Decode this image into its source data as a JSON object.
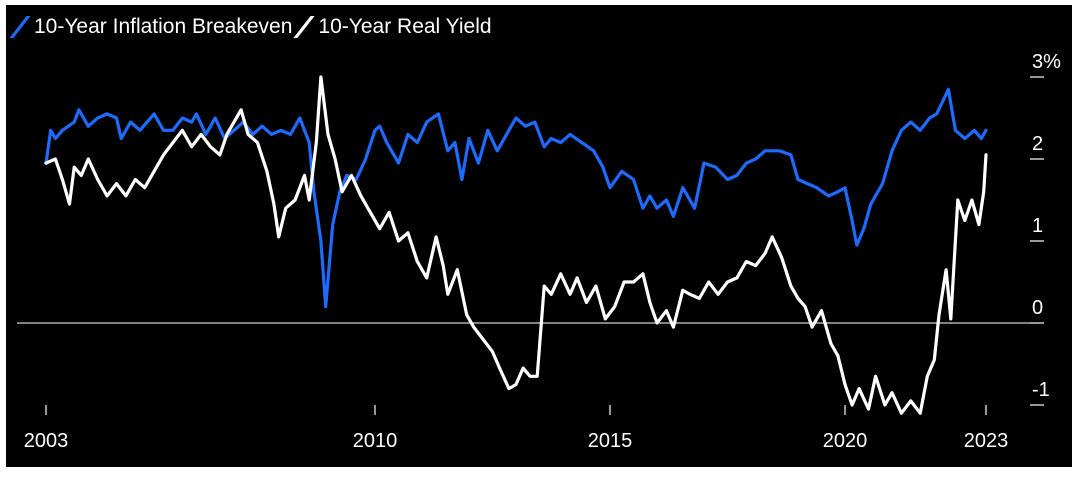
{
  "chart_data": {
    "type": "line",
    "title": "",
    "xlabel": "",
    "ylabel": "",
    "x_ticks": [
      "2003",
      "2010",
      "2015",
      "2020",
      "2023"
    ],
    "y_ticks": [
      "3%",
      "2",
      "1",
      "0",
      "-1"
    ],
    "y_tick_values": [
      3,
      2,
      1,
      0,
      -1
    ],
    "ylim": [
      -1.2,
      3.2
    ],
    "xlim": [
      2003.0,
      2023.0
    ],
    "legend": "top-left",
    "series": [
      {
        "name": "10-Year Inflation Breakeven",
        "color": "#1f6bff",
        "points": [
          [
            2003.0,
            1.95
          ],
          [
            2003.1,
            2.35
          ],
          [
            2003.2,
            2.25
          ],
          [
            2003.35,
            2.35
          ],
          [
            2003.6,
            2.45
          ],
          [
            2003.7,
            2.6
          ],
          [
            2003.9,
            2.4
          ],
          [
            2004.1,
            2.5
          ],
          [
            2004.3,
            2.55
          ],
          [
            2004.5,
            2.5
          ],
          [
            2004.6,
            2.25
          ],
          [
            2004.8,
            2.45
          ],
          [
            2005.0,
            2.35
          ],
          [
            2005.3,
            2.55
          ],
          [
            2005.5,
            2.35
          ],
          [
            2005.7,
            2.35
          ],
          [
            2005.9,
            2.5
          ],
          [
            2006.1,
            2.45
          ],
          [
            2006.2,
            2.55
          ],
          [
            2006.4,
            2.3
          ],
          [
            2006.6,
            2.5
          ],
          [
            2006.8,
            2.25
          ],
          [
            2007.0,
            2.35
          ],
          [
            2007.2,
            2.45
          ],
          [
            2007.4,
            2.3
          ],
          [
            2007.6,
            2.4
          ],
          [
            2007.8,
            2.3
          ],
          [
            2008.0,
            2.35
          ],
          [
            2008.2,
            2.3
          ],
          [
            2008.4,
            2.5
          ],
          [
            2008.6,
            2.2
          ],
          [
            2008.7,
            1.6
          ],
          [
            2008.85,
            1.0
          ],
          [
            2008.95,
            0.2
          ],
          [
            2009.1,
            1.2
          ],
          [
            2009.25,
            1.6
          ],
          [
            2009.4,
            1.8
          ],
          [
            2009.6,
            1.75
          ],
          [
            2009.8,
            2.0
          ],
          [
            2010.0,
            2.35
          ],
          [
            2010.1,
            2.4
          ],
          [
            2010.25,
            2.2
          ],
          [
            2010.5,
            1.95
          ],
          [
            2010.7,
            2.3
          ],
          [
            2010.9,
            2.2
          ],
          [
            2011.1,
            2.45
          ],
          [
            2011.35,
            2.55
          ],
          [
            2011.55,
            2.1
          ],
          [
            2011.7,
            2.2
          ],
          [
            2011.85,
            1.75
          ],
          [
            2012.0,
            2.25
          ],
          [
            2012.2,
            1.95
          ],
          [
            2012.4,
            2.35
          ],
          [
            2012.6,
            2.1
          ],
          [
            2012.8,
            2.3
          ],
          [
            2013.0,
            2.5
          ],
          [
            2013.2,
            2.4
          ],
          [
            2013.4,
            2.45
          ],
          [
            2013.6,
            2.15
          ],
          [
            2013.75,
            2.25
          ],
          [
            2013.95,
            2.2
          ],
          [
            2014.15,
            2.3
          ],
          [
            2014.4,
            2.2
          ],
          [
            2014.65,
            2.1
          ],
          [
            2014.85,
            1.9
          ],
          [
            2015.0,
            1.65
          ],
          [
            2015.25,
            1.85
          ],
          [
            2015.5,
            1.75
          ],
          [
            2015.7,
            1.4
          ],
          [
            2015.85,
            1.55
          ],
          [
            2016.0,
            1.4
          ],
          [
            2016.2,
            1.5
          ],
          [
            2016.35,
            1.3
          ],
          [
            2016.55,
            1.65
          ],
          [
            2016.8,
            1.4
          ],
          [
            2017.0,
            1.95
          ],
          [
            2017.25,
            1.9
          ],
          [
            2017.5,
            1.75
          ],
          [
            2017.7,
            1.8
          ],
          [
            2017.9,
            1.95
          ],
          [
            2018.1,
            2.0
          ],
          [
            2018.3,
            2.1
          ],
          [
            2018.6,
            2.1
          ],
          [
            2018.85,
            2.05
          ],
          [
            2019.0,
            1.75
          ],
          [
            2019.2,
            1.7
          ],
          [
            2019.4,
            1.65
          ],
          [
            2019.65,
            1.55
          ],
          [
            2019.85,
            1.6
          ],
          [
            2020.0,
            1.65
          ],
          [
            2020.15,
            1.25
          ],
          [
            2020.25,
            0.95
          ],
          [
            2020.4,
            1.15
          ],
          [
            2020.55,
            1.45
          ],
          [
            2020.8,
            1.7
          ],
          [
            2021.0,
            2.1
          ],
          [
            2021.2,
            2.35
          ],
          [
            2021.4,
            2.45
          ],
          [
            2021.6,
            2.35
          ],
          [
            2021.8,
            2.5
          ],
          [
            2021.95,
            2.55
          ],
          [
            2022.2,
            2.85
          ],
          [
            2022.35,
            2.35
          ],
          [
            2022.55,
            2.25
          ],
          [
            2022.75,
            2.35
          ],
          [
            2022.9,
            2.25
          ],
          [
            2023.0,
            2.35
          ]
        ]
      },
      {
        "name": "10-Year Real Yield",
        "color": "#ffffff",
        "points": [
          [
            2003.0,
            1.95
          ],
          [
            2003.2,
            2.0
          ],
          [
            2003.35,
            1.75
          ],
          [
            2003.5,
            1.45
          ],
          [
            2003.6,
            1.9
          ],
          [
            2003.75,
            1.8
          ],
          [
            2003.9,
            2.0
          ],
          [
            2004.1,
            1.75
          ],
          [
            2004.3,
            1.55
          ],
          [
            2004.5,
            1.7
          ],
          [
            2004.7,
            1.55
          ],
          [
            2004.9,
            1.75
          ],
          [
            2005.1,
            1.65
          ],
          [
            2005.3,
            1.85
          ],
          [
            2005.5,
            2.05
          ],
          [
            2005.7,
            2.2
          ],
          [
            2005.9,
            2.35
          ],
          [
            2006.1,
            2.15
          ],
          [
            2006.3,
            2.3
          ],
          [
            2006.5,
            2.15
          ],
          [
            2006.7,
            2.05
          ],
          [
            2006.85,
            2.3
          ],
          [
            2007.0,
            2.45
          ],
          [
            2007.15,
            2.6
          ],
          [
            2007.3,
            2.3
          ],
          [
            2007.5,
            2.2
          ],
          [
            2007.7,
            1.85
          ],
          [
            2007.85,
            1.45
          ],
          [
            2007.95,
            1.05
          ],
          [
            2008.1,
            1.4
          ],
          [
            2008.3,
            1.5
          ],
          [
            2008.5,
            1.8
          ],
          [
            2008.6,
            1.5
          ],
          [
            2008.75,
            2.2
          ],
          [
            2008.85,
            3.0
          ],
          [
            2009.0,
            2.3
          ],
          [
            2009.15,
            2.0
          ],
          [
            2009.3,
            1.6
          ],
          [
            2009.5,
            1.8
          ],
          [
            2009.7,
            1.55
          ],
          [
            2009.9,
            1.35
          ],
          [
            2010.1,
            1.15
          ],
          [
            2010.3,
            1.35
          ],
          [
            2010.5,
            1.0
          ],
          [
            2010.7,
            1.1
          ],
          [
            2010.9,
            0.75
          ],
          [
            2011.1,
            0.55
          ],
          [
            2011.3,
            1.05
          ],
          [
            2011.45,
            0.7
          ],
          [
            2011.55,
            0.35
          ],
          [
            2011.75,
            0.65
          ],
          [
            2011.95,
            0.1
          ],
          [
            2012.1,
            -0.05
          ],
          [
            2012.3,
            -0.2
          ],
          [
            2012.5,
            -0.35
          ],
          [
            2012.65,
            -0.55
          ],
          [
            2012.85,
            -0.8
          ],
          [
            2013.0,
            -0.75
          ],
          [
            2013.15,
            -0.55
          ],
          [
            2013.3,
            -0.65
          ],
          [
            2013.45,
            -0.65
          ],
          [
            2013.6,
            0.45
          ],
          [
            2013.75,
            0.35
          ],
          [
            2013.95,
            0.6
          ],
          [
            2014.15,
            0.35
          ],
          [
            2014.3,
            0.55
          ],
          [
            2014.5,
            0.25
          ],
          [
            2014.7,
            0.45
          ],
          [
            2014.9,
            0.05
          ],
          [
            2015.1,
            0.2
          ],
          [
            2015.3,
            0.5
          ],
          [
            2015.5,
            0.5
          ],
          [
            2015.7,
            0.6
          ],
          [
            2015.85,
            0.25
          ],
          [
            2016.0,
            0.0
          ],
          [
            2016.2,
            0.15
          ],
          [
            2016.35,
            -0.05
          ],
          [
            2016.55,
            0.4
          ],
          [
            2016.7,
            0.35
          ],
          [
            2016.9,
            0.3
          ],
          [
            2017.1,
            0.5
          ],
          [
            2017.3,
            0.35
          ],
          [
            2017.5,
            0.5
          ],
          [
            2017.7,
            0.55
          ],
          [
            2017.9,
            0.75
          ],
          [
            2018.1,
            0.7
          ],
          [
            2018.3,
            0.85
          ],
          [
            2018.45,
            1.05
          ],
          [
            2018.65,
            0.8
          ],
          [
            2018.85,
            0.45
          ],
          [
            2019.0,
            0.3
          ],
          [
            2019.15,
            0.2
          ],
          [
            2019.3,
            -0.05
          ],
          [
            2019.5,
            0.15
          ],
          [
            2019.7,
            -0.25
          ],
          [
            2019.85,
            -0.4
          ],
          [
            2020.0,
            -0.75
          ],
          [
            2020.15,
            -1.0
          ],
          [
            2020.3,
            -0.8
          ],
          [
            2020.5,
            -1.05
          ],
          [
            2020.65,
            -0.65
          ],
          [
            2020.85,
            -1.0
          ],
          [
            2021.0,
            -0.85
          ],
          [
            2021.2,
            -1.1
          ],
          [
            2021.4,
            -0.95
          ],
          [
            2021.6,
            -1.1
          ],
          [
            2021.75,
            -0.65
          ],
          [
            2021.9,
            -0.45
          ],
          [
            2022.0,
            0.1
          ],
          [
            2022.15,
            0.65
          ],
          [
            2022.25,
            0.05
          ],
          [
            2022.4,
            1.5
          ],
          [
            2022.55,
            1.25
          ],
          [
            2022.7,
            1.5
          ],
          [
            2022.85,
            1.2
          ],
          [
            2022.95,
            1.6
          ],
          [
            2023.0,
            2.05
          ]
        ]
      }
    ]
  },
  "style": {
    "background": "#000000",
    "zero_line_color": "#d0d0d0",
    "text_color": "#ffffff"
  }
}
